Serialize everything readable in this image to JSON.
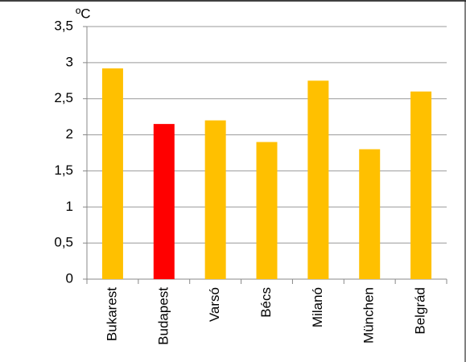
{
  "chart_data": {
    "type": "bar",
    "y_unit": "ºC",
    "categories": [
      "Bukarest",
      "Budapest",
      "Varsó",
      "Bécs",
      "Milanó",
      "München",
      "Belgrád"
    ],
    "values": [
      2.92,
      2.15,
      2.2,
      1.9,
      2.75,
      1.8,
      2.6
    ],
    "colors": [
      "#ffc000",
      "#ff0000",
      "#ffc000",
      "#ffc000",
      "#ffc000",
      "#ffc000",
      "#ffc000"
    ],
    "ylim": [
      0,
      3.5
    ],
    "yticks": [
      0,
      {
        "value": 0.5,
        "label": "0,5"
      },
      1,
      {
        "value": 1.5,
        "label": "1,5"
      },
      2,
      {
        "value": 2.5,
        "label": "2,5"
      },
      3,
      {
        "value": 3.5,
        "label": "3,5"
      }
    ],
    "grid": true
  }
}
